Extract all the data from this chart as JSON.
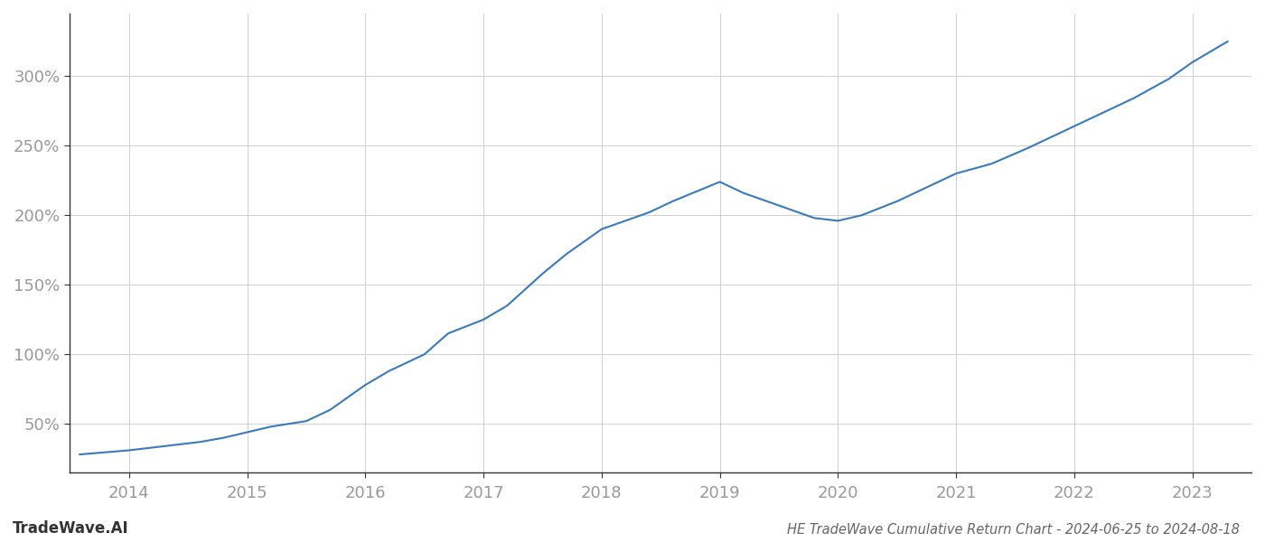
{
  "x": [
    2013.58,
    2014.0,
    2014.2,
    2014.4,
    2014.6,
    2014.8,
    2015.0,
    2015.2,
    2015.5,
    2015.7,
    2016.0,
    2016.2,
    2016.5,
    2016.7,
    2017.0,
    2017.2,
    2017.5,
    2017.7,
    2018.0,
    2018.2,
    2018.4,
    2018.6,
    2019.0,
    2019.2,
    2019.5,
    2019.8,
    2020.0,
    2020.2,
    2020.5,
    2020.7,
    2021.0,
    2021.3,
    2021.6,
    2021.9,
    2022.2,
    2022.5,
    2022.8,
    2023.0,
    2023.3
  ],
  "y": [
    28,
    31,
    33,
    35,
    37,
    40,
    44,
    48,
    52,
    60,
    78,
    88,
    100,
    115,
    125,
    135,
    158,
    172,
    190,
    196,
    202,
    210,
    224,
    216,
    207,
    198,
    196,
    200,
    210,
    218,
    230,
    237,
    248,
    260,
    272,
    284,
    298,
    310,
    325
  ],
  "line_color": "#3a7abf",
  "background_color": "#ffffff",
  "grid_color": "#d0d0d0",
  "tick_label_color": "#999999",
  "spine_color": "#333333",
  "title": "HE TradeWave Cumulative Return Chart - 2024-06-25 to 2024-08-18",
  "watermark": "TradeWave.AI",
  "title_color": "#666666",
  "watermark_color": "#333333",
  "xlim": [
    2013.5,
    2023.5
  ],
  "ylim": [
    15,
    345
  ],
  "xticks": [
    2014,
    2015,
    2016,
    2017,
    2018,
    2019,
    2020,
    2021,
    2022,
    2023
  ],
  "yticks": [
    50,
    100,
    150,
    200,
    250,
    300
  ],
  "line_width": 1.5,
  "figsize": [
    14.0,
    6.0
  ],
  "dpi": 100
}
